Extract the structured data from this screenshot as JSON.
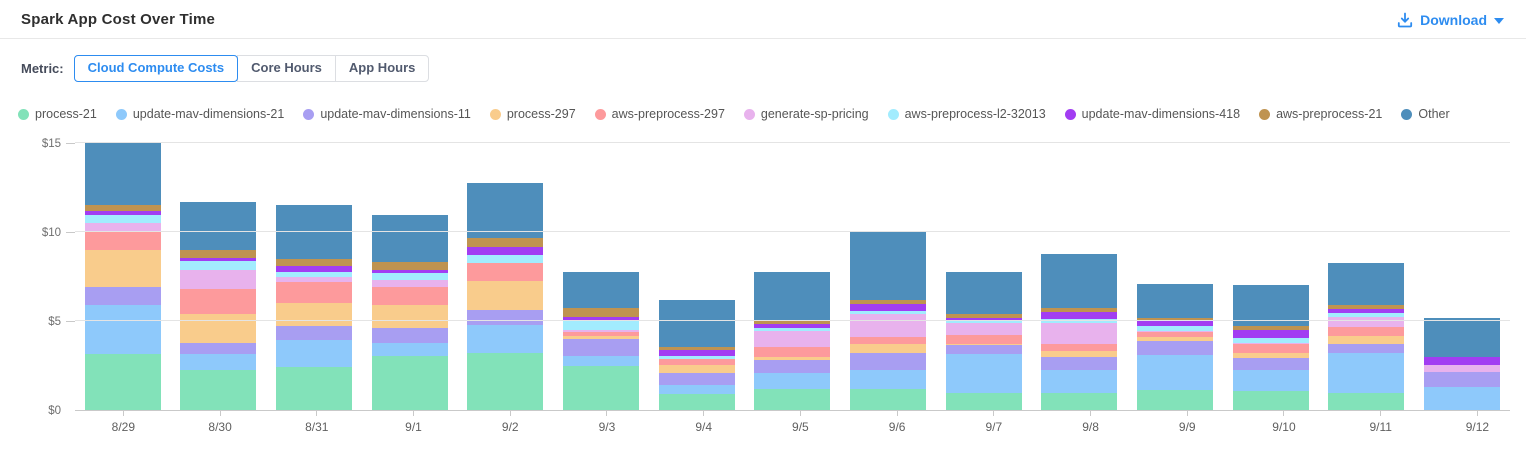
{
  "header": {
    "title": "Spark App Cost Over Time",
    "download_label": "Download"
  },
  "metric": {
    "label": "Metric:",
    "options": [
      {
        "label": "Cloud Compute Costs",
        "selected": true
      },
      {
        "label": "Core Hours",
        "selected": false
      },
      {
        "label": "App Hours",
        "selected": false
      }
    ]
  },
  "colors": {
    "accent": "#2d8cf0",
    "axis_line": "#c9c9c9",
    "gridline": "#e4e4e4"
  },
  "chart_data": {
    "type": "bar",
    "stacked": true,
    "title": "Spark App Cost Over Time",
    "xlabel": "",
    "ylabel": "",
    "ylim": [
      0,
      15
    ],
    "grid": true,
    "legend_position": "top",
    "y_ticks": [
      {
        "label": "$0",
        "value": 0
      },
      {
        "label": "$5",
        "value": 5
      },
      {
        "label": "$10",
        "value": 10
      },
      {
        "label": "$15",
        "value": 15
      }
    ],
    "categories": [
      "8/29",
      "8/30",
      "8/31",
      "9/1",
      "9/2",
      "9/3",
      "9/4",
      "9/5",
      "9/6",
      "9/7",
      "9/8",
      "9/9",
      "9/10",
      "9/11",
      "9/12"
    ],
    "series": [
      {
        "name": "process-21",
        "color": "#82e2b9",
        "values": [
          3.15,
          2.25,
          2.45,
          3.05,
          3.2,
          2.5,
          0.9,
          1.2,
          1.2,
          0.95,
          1.0,
          1.15,
          1.1,
          1.0,
          0.0
        ]
      },
      {
        "name": "update-mav-dimensions-21",
        "color": "#8ec9fb",
        "values": [
          2.75,
          0.9,
          1.5,
          0.75,
          1.6,
          0.55,
          0.55,
          0.9,
          1.05,
          2.2,
          1.25,
          1.95,
          1.15,
          2.2,
          1.3
        ]
      },
      {
        "name": "update-mav-dimensions-11",
        "color": "#a89ef2",
        "values": [
          1.05,
          0.65,
          0.8,
          0.85,
          0.85,
          0.95,
          0.65,
          0.7,
          0.95,
          0.5,
          0.75,
          0.8,
          0.7,
          0.55,
          0.85
        ]
      },
      {
        "name": "process-297",
        "color": "#f9cc8c",
        "values": [
          2.05,
          1.6,
          1.3,
          1.25,
          1.6,
          0.2,
          0.45,
          0.2,
          0.5,
          0.1,
          0.35,
          0.2,
          0.25,
          0.4,
          0.0
        ]
      },
      {
        "name": "aws-preprocess-297",
        "color": "#fd9a9c",
        "values": [
          1.1,
          1.4,
          1.15,
          1.05,
          1.05,
          0.2,
          0.35,
          0.55,
          0.4,
          0.5,
          0.4,
          0.3,
          0.55,
          0.55,
          0.0
        ]
      },
      {
        "name": "generate-sp-pricing",
        "color": "#e8b2ed",
        "values": [
          0.45,
          1.1,
          0.3,
          0.35,
          0.0,
          0.1,
          0.0,
          0.9,
          1.3,
          0.65,
          1.15,
          0.05,
          0.05,
          0.55,
          0.4
        ]
      },
      {
        "name": "aws-preprocess-l2-32013",
        "color": "#a2ecfe",
        "values": [
          0.45,
          0.5,
          0.25,
          0.4,
          0.45,
          0.5,
          0.15,
          0.2,
          0.2,
          0.15,
          0.25,
          0.3,
          0.25,
          0.2,
          0.0
        ]
      },
      {
        "name": "update-mav-dimensions-418",
        "color": "#a23df2",
        "values": [
          0.2,
          0.15,
          0.35,
          0.2,
          0.4,
          0.25,
          0.35,
          0.2,
          0.4,
          0.15,
          0.4,
          0.25,
          0.45,
          0.25,
          0.45
        ]
      },
      {
        "name": "aws-preprocess-21",
        "color": "#bf9350",
        "values": [
          0.35,
          0.45,
          0.4,
          0.45,
          0.55,
          0.5,
          0.15,
          0.2,
          0.2,
          0.2,
          0.2,
          0.2,
          0.25,
          0.2,
          0.0
        ]
      },
      {
        "name": "Other",
        "color": "#4e8ebb",
        "values": [
          3.45,
          2.7,
          3.05,
          2.65,
          3.1,
          2.05,
          2.65,
          2.75,
          3.8,
          2.4,
          3.05,
          1.9,
          2.3,
          2.4,
          2.2
        ]
      }
    ]
  }
}
